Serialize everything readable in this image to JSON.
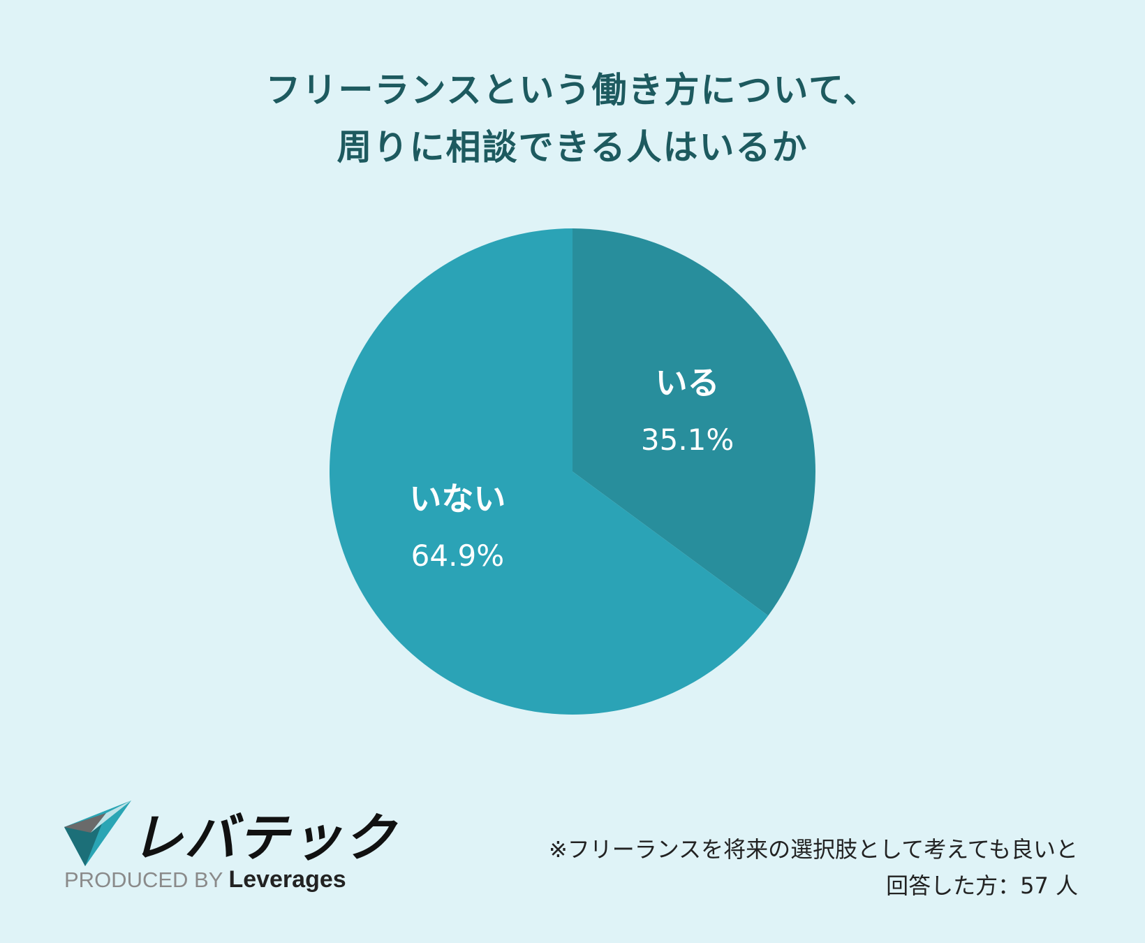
{
  "title": {
    "line1": "フリーランスという働き方について、",
    "line2": "周りに相談できる人はいるか"
  },
  "chart_data": {
    "type": "pie",
    "title": "フリーランスという働き方について、周りに相談できる人はいるか",
    "slices": [
      {
        "label": "いる",
        "value": 35.1,
        "display": "35.1%",
        "color": "#288e9c"
      },
      {
        "label": "いない",
        "value": 64.9,
        "display": "64.9%",
        "color": "#2ba3b6"
      }
    ],
    "start_angle_deg": 0,
    "direction": "clockwise",
    "legend": "none"
  },
  "logo": {
    "name": "レバテック",
    "produced_by": "PRODUCED BY",
    "brand": "Leverages",
    "colors": {
      "dark": "#1e7f86",
      "light": "#2bb0bf",
      "grey": "#555555"
    }
  },
  "footnote": {
    "line1": "※フリーランスを将来の選択肢として考えても良いと",
    "line2": "回答した方：57 人"
  }
}
